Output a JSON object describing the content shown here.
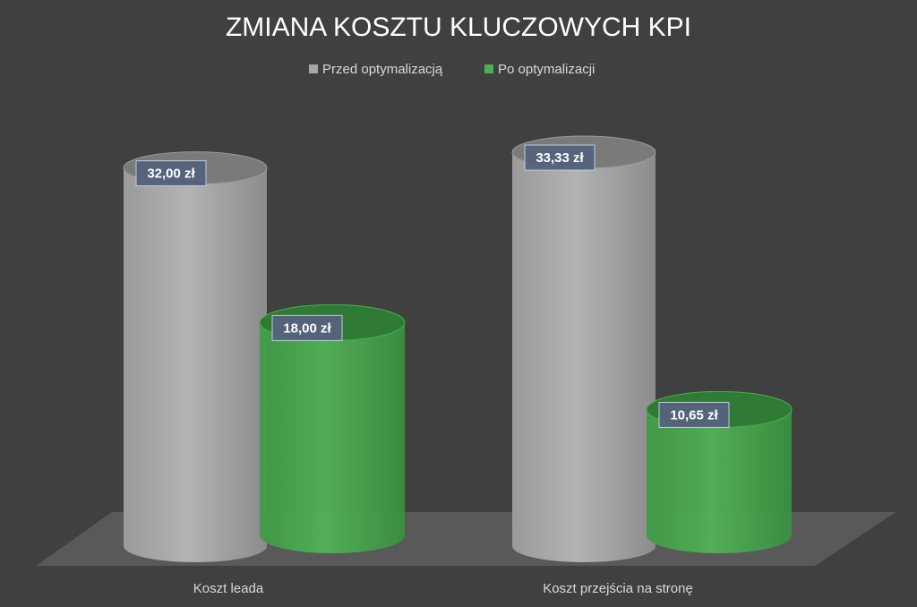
{
  "chart_data": {
    "type": "bar3d",
    "title": "ZMIANA KOSZTU KLUCZOWYCH KPI",
    "categories": [
      "Koszt leada",
      "Koszt przejścia na stronę"
    ],
    "series": [
      {
        "name": "Przed optymalizacją",
        "color": "#a6a6a6",
        "values": [
          32,
          33.33
        ],
        "value_labels": [
          "32,00  zł",
          "33,33  zł"
        ]
      },
      {
        "name": "Po optymalizacji",
        "color": "#4caf50",
        "values": [
          18,
          10.65
        ],
        "value_labels": [
          "18,00  zł",
          "10,65  zł"
        ]
      }
    ],
    "legend": "top"
  }
}
